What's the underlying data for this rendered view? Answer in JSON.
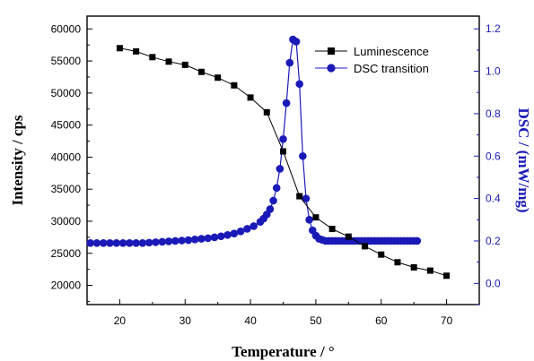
{
  "chart_data": {
    "type": "line",
    "xlabel": "Temperature / °",
    "ylabel": "Intensity / cps",
    "y2label": "DSC / (mW/mg)",
    "xlim": [
      15,
      75
    ],
    "ylim": [
      17000,
      62000
    ],
    "y2lim": [
      -0.1,
      1.26
    ],
    "xticks": [
      "20",
      "30",
      "40",
      "50",
      "60",
      "70"
    ],
    "yticks": [
      "20000",
      "25000",
      "30000",
      "35000",
      "40000",
      "45000",
      "50000",
      "55000",
      "60000"
    ],
    "y2ticks": [
      "0.0",
      "0.2",
      "0.4",
      "0.6",
      "0.8",
      "1.0",
      "1.2"
    ],
    "x_tick_values": [
      20,
      30,
      40,
      50,
      60,
      70
    ],
    "y_tick_values": [
      20000,
      25000,
      30000,
      35000,
      40000,
      45000,
      50000,
      55000,
      60000
    ],
    "y2_tick_values": [
      0,
      0.2,
      0.4,
      0.6,
      0.8,
      1.0,
      1.2
    ],
    "legend_position": "top-right",
    "colors": {
      "luminescence": "#000000",
      "dsc": "#1a1ab8",
      "axis_right": "#1a1ab8"
    },
    "series": [
      {
        "name": "Luminescence",
        "axis": "left",
        "marker": "square",
        "x": [
          20,
          22.5,
          25,
          27.5,
          30,
          32.5,
          35,
          37.5,
          40,
          42.5,
          45,
          47.5,
          50,
          52.5,
          55,
          57.5,
          60,
          62.5,
          65,
          67.5,
          70
        ],
        "values": [
          57000,
          56500,
          55600,
          54900,
          54400,
          53300,
          52400,
          51200,
          49300,
          47000,
          40900,
          33900,
          30600,
          28800,
          27600,
          26100,
          24800,
          23600,
          22800,
          22300,
          21500
        ]
      },
      {
        "name": "DSC transition",
        "axis": "right",
        "marker": "circle",
        "x": [
          15.5,
          16.5,
          17.5,
          18.5,
          19.5,
          20.5,
          21.5,
          22.5,
          23.5,
          24.5,
          25.5,
          26.5,
          27.5,
          28.5,
          29.5,
          30.5,
          31.5,
          32.5,
          33.5,
          34.5,
          35.5,
          36.5,
          37.5,
          38.5,
          39.5,
          40.5,
          41.5,
          42.0,
          42.5,
          43.0,
          43.5,
          44.0,
          44.5,
          45.0,
          45.5,
          46.0,
          46.5,
          47.0,
          47.5,
          48.0,
          48.5,
          49.0,
          49.5,
          50.0,
          50.5,
          51.0,
          51.5,
          52.0,
          52.5,
          53.0,
          53.5,
          54.0,
          54.5,
          55.0,
          55.5,
          56.0,
          56.5,
          57.0,
          57.5,
          58.0,
          58.5,
          59.0,
          59.5,
          60.0,
          60.5,
          61.0,
          61.5,
          62.0,
          62.5,
          63.0,
          63.5,
          64.0,
          64.5,
          65.0,
          65.5
        ],
        "values": [
          0.19,
          0.19,
          0.19,
          0.19,
          0.19,
          0.19,
          0.19,
          0.19,
          0.19,
          0.192,
          0.194,
          0.196,
          0.198,
          0.2,
          0.202,
          0.204,
          0.207,
          0.21,
          0.213,
          0.217,
          0.222,
          0.228,
          0.235,
          0.245,
          0.257,
          0.27,
          0.29,
          0.305,
          0.325,
          0.35,
          0.39,
          0.45,
          0.54,
          0.68,
          0.85,
          1.04,
          1.15,
          1.14,
          0.94,
          0.6,
          0.4,
          0.3,
          0.25,
          0.225,
          0.21,
          0.205,
          0.2,
          0.2,
          0.2,
          0.2,
          0.2,
          0.2,
          0.2,
          0.2,
          0.2,
          0.2,
          0.2,
          0.2,
          0.2,
          0.2,
          0.2,
          0.2,
          0.2,
          0.2,
          0.2,
          0.2,
          0.2,
          0.2,
          0.2,
          0.2,
          0.2,
          0.2,
          0.2,
          0.2,
          0.2
        ]
      }
    ]
  }
}
